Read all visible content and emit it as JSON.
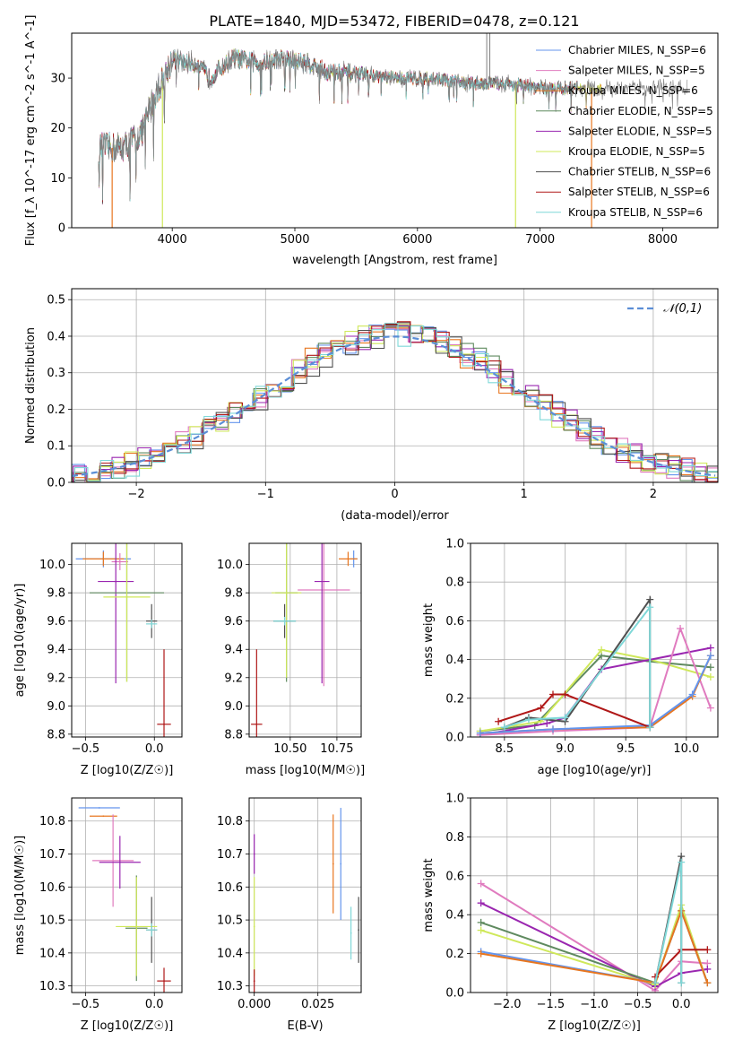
{
  "figure": {
    "title": "PLATE=1840, MJD=53472, FIBERID=0478, z=0.121",
    "colors": {
      "chabrier_miles": "#6495ed",
      "salpeter_miles": "#e07bbf",
      "kroupa_miles": "#e8761f",
      "chabrier_elodie": "#5f8a5f",
      "salpeter_elodie": "#9a26b0",
      "kroupa_elodie": "#cfe85a",
      "chabrier_stelib": "#505050",
      "salpeter_stelib": "#b01818",
      "kroupa_stelib": "#7fd8d8",
      "gaussian": "#5b8ed6",
      "grid": "#b0b0b0"
    }
  },
  "chart_data": [
    {
      "type": "line",
      "id": "spectrum",
      "xlabel": "wavelength [Angstrom, rest frame]",
      "ylabel": "Flux [f_λ 10^-17 erg cm^-2 s^-1 A^-1]",
      "xlim": [
        3180,
        8450
      ],
      "ylim": [
        0,
        39
      ],
      "xticks": [
        4000,
        5000,
        6000,
        7000,
        8000
      ],
      "yticks": [
        0,
        10,
        20,
        30
      ],
      "grid": false,
      "legend_position": "top-right",
      "legend": [
        "Chabrier MILES, N_SSP=6",
        "Salpeter MILES, N_SSP=5",
        "Kroupa MILES, N_SSP=6",
        "Chabrier ELODIE, N_SSP=5",
        "Salpeter ELODIE, N_SSP=5",
        "Kroupa ELODIE, N_SSP=5",
        "Chabrier STELIB, N_SSP=6",
        "Salpeter STELIB, N_SSP=6",
        "Kroupa STELIB, N_SSP=6"
      ],
      "continuum": {
        "x": [
          3400,
          3600,
          3750,
          3850,
          3950,
          4000,
          4100,
          4200,
          4300,
          4500,
          4700,
          4900,
          5100,
          5300,
          5500,
          5800,
          6100,
          6400,
          6700,
          7000,
          7300,
          7500
        ],
        "y": [
          16,
          16,
          19,
          26,
          31,
          34,
          33,
          33,
          30,
          34,
          33,
          34,
          33,
          31,
          31,
          30,
          30,
          29,
          29,
          28,
          28,
          28
        ]
      },
      "data_spikes": [
        {
          "x": 6565,
          "y": 39
        },
        {
          "x": 6590,
          "y": 39
        }
      ],
      "model_dropouts": [
        {
          "x": 3510,
          "series": "kroupa_miles"
        },
        {
          "x": 3920,
          "series": "kroupa_elodie"
        },
        {
          "x": 6800,
          "series": "kroupa_elodie"
        },
        {
          "x": 7420,
          "series": "kroupa_miles"
        }
      ]
    },
    {
      "type": "line",
      "id": "residuals",
      "xlabel": "(data-model)/error",
      "ylabel": "Normed distribution",
      "xlim": [
        -2.5,
        2.5
      ],
      "ylim": [
        0,
        0.53
      ],
      "xticks": [
        -2,
        -1,
        0,
        1,
        2
      ],
      "yticks": [
        0.0,
        0.1,
        0.2,
        0.3,
        0.4,
        0.5
      ],
      "grid": true,
      "legend_position": "top-right",
      "legend": [
        "𝒩(0,1)"
      ],
      "histogram_bin_width": 0.1
    },
    {
      "type": "scatter",
      "id": "age-vs-z",
      "xlabel": "Z [log10(Z/Z☉)]",
      "ylabel": "age  [log10(age/yr)]",
      "xlim": [
        -0.6,
        0.2
      ],
      "ylim": [
        8.78,
        10.15
      ],
      "xticks": [
        -0.5,
        0.0
      ],
      "yticks": [
        8.8,
        9.0,
        9.2,
        9.4,
        9.6,
        9.8,
        10.0
      ],
      "grid": true,
      "points": [
        {
          "series": "chabrier_miles",
          "x": -0.37,
          "xerr": 0.2,
          "y": 10.04,
          "yerr": 0.06
        },
        {
          "series": "kroupa_miles",
          "x": -0.37,
          "xerr": 0.15,
          "y": 10.04,
          "yerr": 0.05
        },
        {
          "series": "salpeter_miles",
          "x": -0.25,
          "xerr": 0.06,
          "y": 10.02,
          "yerr": 0.06
        },
        {
          "series": "salpeter_elodie",
          "x": -0.28,
          "xerr": 0.13,
          "y": 9.88,
          "yerr": 0.72
        },
        {
          "series": "chabrier_elodie",
          "x": -0.2,
          "xerr": 0.27,
          "y": 9.8,
          "yerr": 0.63
        },
        {
          "series": "kroupa_elodie",
          "x": -0.2,
          "xerr": 0.17,
          "y": 9.77,
          "yerr": 0.6
        },
        {
          "series": "chabrier_stelib",
          "x": -0.02,
          "xerr": 0.04,
          "y": 9.6,
          "yerr": 0.12
        },
        {
          "series": "kroupa_stelib",
          "x": -0.02,
          "xerr": 0.04,
          "y": 9.58,
          "yerr": 0.03
        },
        {
          "series": "salpeter_stelib",
          "x": 0.07,
          "xerr": 0.05,
          "y": 8.87,
          "yerr": 0.53
        }
      ]
    },
    {
      "type": "scatter",
      "id": "age-vs-mass",
      "xlabel": "mass [log10(M/M☉)]",
      "ylabel": "",
      "xlim": [
        10.28,
        10.88
      ],
      "ylim": [
        8.78,
        10.15
      ],
      "xticks": [
        10.5,
        10.75
      ],
      "tick_labels": [
        "10.50",
        "10.75"
      ],
      "yticks": [
        8.8,
        9.0,
        9.2,
        9.4,
        9.6,
        9.8,
        10.0
      ],
      "grid": true,
      "points": [
        {
          "series": "chabrier_miles",
          "x": 10.84,
          "xerr": 0.02,
          "y": 10.04,
          "yerr": 0.06
        },
        {
          "series": "kroupa_miles",
          "x": 10.81,
          "xerr": 0.05,
          "y": 10.04,
          "yerr": 0.05
        },
        {
          "series": "salpeter_miles",
          "x": 10.68,
          "xerr": 0.14,
          "y": 9.82,
          "yerr": 0.68
        },
        {
          "series": "salpeter_elodie",
          "x": 10.67,
          "xerr": 0.04,
          "y": 9.88,
          "yerr": 0.72
        },
        {
          "series": "chabrier_elodie",
          "x": 10.48,
          "xerr": 0.06,
          "y": 9.8,
          "yerr": 0.63
        },
        {
          "series": "kroupa_elodie",
          "x": 10.48,
          "xerr": 0.08,
          "y": 9.8,
          "yerr": 0.6
        },
        {
          "series": "chabrier_stelib",
          "x": 10.47,
          "xerr": 0.06,
          "y": 9.6,
          "yerr": 0.12
        },
        {
          "series": "kroupa_stelib",
          "x": 10.47,
          "xerr": 0.06,
          "y": 9.6,
          "yerr": 0.03
        },
        {
          "series": "salpeter_stelib",
          "x": 10.32,
          "xerr": 0.03,
          "y": 8.87,
          "yerr": 0.53
        }
      ]
    },
    {
      "type": "line",
      "id": "weight-vs-age",
      "xlabel": "age  [log10(age/yr)]",
      "ylabel": "mass weight",
      "xlim": [
        8.22,
        10.26
      ],
      "ylim": [
        0,
        1.0
      ],
      "xticks": [
        8.5,
        9.0,
        9.5,
        10.0
      ],
      "yticks": [
        0.0,
        0.2,
        0.4,
        0.6,
        0.8,
        1.0
      ],
      "grid": true,
      "series": [
        {
          "series": "chabrier_elodie",
          "x": [
            8.3,
            8.75,
            9.3,
            9.7,
            10.2
          ],
          "y": [
            0.03,
            0.06,
            0.42,
            0.39,
            0.36
          ]
        },
        {
          "series": "kroupa_elodie",
          "x": [
            8.3,
            8.8,
            9.3,
            9.7,
            10.2
          ],
          "y": [
            0.03,
            0.08,
            0.45,
            0.4,
            0.31
          ]
        },
        {
          "series": "salpeter_elodie",
          "x": [
            8.3,
            8.85,
            9.0,
            9.3,
            10.2
          ],
          "y": [
            0.01,
            0.07,
            0.1,
            0.35,
            0.46
          ]
        },
        {
          "series": "salpeter_miles",
          "x": [
            8.3,
            8.9,
            9.7,
            9.95,
            10.2
          ],
          "y": [
            0.01,
            0.03,
            0.05,
            0.56,
            0.15
          ]
        },
        {
          "series": "kroupa_miles",
          "x": [
            8.3,
            8.9,
            9.7,
            10.05,
            10.2
          ],
          "y": [
            0.02,
            0.04,
            0.05,
            0.21,
            0.42
          ]
        },
        {
          "series": "chabrier_miles",
          "x": [
            8.3,
            8.9,
            9.7,
            10.05,
            10.2
          ],
          "y": [
            0.02,
            0.04,
            0.06,
            0.22,
            0.42
          ]
        },
        {
          "series": "salpeter_stelib",
          "x": [
            8.45,
            8.8,
            8.9,
            9.0,
            9.7
          ],
          "y": [
            0.08,
            0.15,
            0.22,
            0.22,
            0.05
          ]
        },
        {
          "series": "chabrier_stelib",
          "x": [
            8.5,
            8.7,
            9.0,
            9.7,
            9.7
          ],
          "y": [
            0.05,
            0.1,
            0.08,
            0.71,
            0.05
          ]
        },
        {
          "series": "kroupa_stelib",
          "x": [
            8.5,
            8.7,
            9.0,
            9.7,
            9.7
          ],
          "y": [
            0.05,
            0.09,
            0.1,
            0.67,
            0.05
          ]
        }
      ]
    },
    {
      "type": "scatter",
      "id": "mass-vs-z",
      "xlabel": "Z [log10(Z/Z☉)]",
      "ylabel": "mass [log10(M/M☉)]",
      "xlim": [
        -0.6,
        0.2
      ],
      "ylim": [
        10.28,
        10.87
      ],
      "xticks": [
        -0.5,
        0.0
      ],
      "yticks": [
        10.3,
        10.4,
        10.5,
        10.6,
        10.7,
        10.8
      ],
      "grid": true,
      "points": [
        {
          "series": "chabrier_miles",
          "x": -0.4,
          "xerr": 0.15,
          "y": 10.84,
          "yerr": 0.0
        },
        {
          "series": "kroupa_miles",
          "x": -0.37,
          "xerr": 0.1,
          "y": 10.815,
          "yerr": 0.0
        },
        {
          "series": "salpeter_miles",
          "x": -0.3,
          "xerr": 0.15,
          "y": 10.68,
          "yerr": 0.14
        },
        {
          "series": "salpeter_elodie",
          "x": -0.25,
          "xerr": 0.15,
          "y": 10.675,
          "yerr": 0.08
        },
        {
          "series": "chabrier_elodie",
          "x": -0.13,
          "xerr": 0.08,
          "y": 10.475,
          "yerr": 0.16
        },
        {
          "series": "kroupa_elodie",
          "x": -0.13,
          "xerr": 0.15,
          "y": 10.48,
          "yerr": 0.15
        },
        {
          "series": "chabrier_stelib",
          "x": -0.02,
          "xerr": 0.04,
          "y": 10.47,
          "yerr": 0.1
        },
        {
          "series": "kroupa_stelib",
          "x": -0.02,
          "xerr": 0.04,
          "y": 10.47,
          "yerr": 0.02
        },
        {
          "series": "salpeter_stelib",
          "x": 0.07,
          "xerr": 0.05,
          "y": 10.315,
          "yerr": 0.04
        }
      ]
    },
    {
      "type": "scatter",
      "id": "mass-vs-ebv",
      "xlabel": "E(B-V)",
      "ylabel": "",
      "xlim": [
        -0.002,
        0.042
      ],
      "ylim": [
        10.28,
        10.87
      ],
      "xticks": [
        0.0,
        0.025
      ],
      "tick_labels": [
        "0.000",
        "0.025"
      ],
      "yticks": [
        10.3,
        10.4,
        10.5,
        10.6,
        10.7,
        10.8
      ],
      "grid": true,
      "points": [
        {
          "series": "salpeter_elodie",
          "x": 0.0,
          "xerr": 0,
          "y": 10.7,
          "yerr": 0.06
        },
        {
          "series": "kroupa_elodie",
          "x": 0.0,
          "xerr": 0,
          "y": 10.48,
          "yerr": 0.15
        },
        {
          "series": "salpeter_stelib",
          "x": 0.0,
          "xerr": 0,
          "y": 10.315,
          "yerr": 0.035
        },
        {
          "series": "kroupa_miles",
          "x": 0.031,
          "xerr": 0,
          "y": 10.67,
          "yerr": 0.15
        },
        {
          "series": "chabrier_miles",
          "x": 0.034,
          "xerr": 0,
          "y": 10.67,
          "yerr": 0.17
        },
        {
          "series": "kroupa_stelib",
          "x": 0.038,
          "xerr": 0,
          "y": 10.46,
          "yerr": 0.08
        },
        {
          "series": "chabrier_stelib",
          "x": 0.041,
          "xerr": 0,
          "y": 10.47,
          "yerr": 0.1
        }
      ]
    },
    {
      "type": "line",
      "id": "weight-vs-z",
      "xlabel": "Z [log10(Z/Z☉)]",
      "ylabel": "mass weight",
      "xlim": [
        -2.42,
        0.42
      ],
      "ylim": [
        0,
        1.0
      ],
      "xticks": [
        -2.0,
        -1.5,
        -1.0,
        -0.5,
        0.0
      ],
      "yticks": [
        0.0,
        0.2,
        0.4,
        0.6,
        0.8,
        1.0
      ],
      "grid": true,
      "series": [
        {
          "series": "salpeter_miles",
          "x": [
            -2.3,
            -0.3,
            0.0,
            0.3
          ],
          "y": [
            0.56,
            0.01,
            0.16,
            0.15
          ]
        },
        {
          "series": "salpeter_elodie",
          "x": [
            -2.3,
            -0.3,
            0.0,
            0.3
          ],
          "y": [
            0.46,
            0.03,
            0.1,
            0.12
          ]
        },
        {
          "series": "chabrier_elodie",
          "x": [
            -2.3,
            -0.3,
            0.0,
            0.3
          ],
          "y": [
            0.36,
            0.05,
            0.42,
            0.05
          ]
        },
        {
          "series": "kroupa_elodie",
          "x": [
            -2.3,
            -0.3,
            0.0,
            0.3
          ],
          "y": [
            0.32,
            0.04,
            0.45,
            0.05
          ]
        },
        {
          "series": "chabrier_miles",
          "x": [
            -2.3,
            -0.3,
            0.0,
            0.3
          ],
          "y": [
            0.21,
            0.05,
            0.42,
            0.05
          ]
        },
        {
          "series": "kroupa_miles",
          "x": [
            -2.3,
            -0.3,
            0.0,
            0.3
          ],
          "y": [
            0.2,
            0.05,
            0.42,
            0.05
          ]
        },
        {
          "series": "salpeter_stelib",
          "x": [
            -0.3,
            0.0,
            0.3
          ],
          "y": [
            0.08,
            0.22,
            0.22
          ]
        },
        {
          "series": "chabrier_stelib",
          "x": [
            -0.3,
            0.0,
            0.0
          ],
          "y": [
            0.05,
            0.7,
            0.05
          ]
        },
        {
          "series": "kroupa_stelib",
          "x": [
            -0.3,
            0.0,
            0.0
          ],
          "y": [
            0.05,
            0.67,
            0.05
          ]
        }
      ]
    }
  ]
}
